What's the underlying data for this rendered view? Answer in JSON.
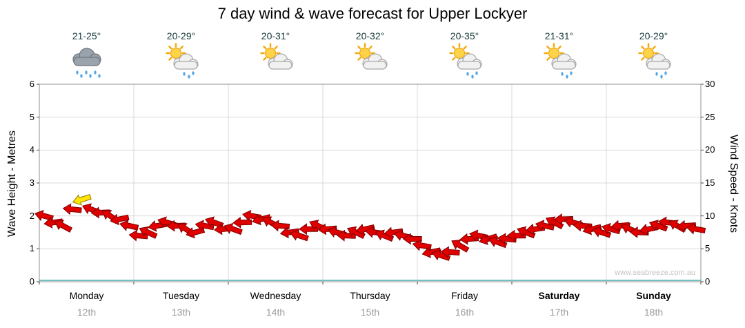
{
  "title": "7 day wind & wave forecast for Upper Lockyer",
  "watermark": "www.seabreeze.com.au",
  "axes": {
    "left_label": "Wave Height - Metres",
    "right_label": "Wind Speed - Knots",
    "left_ticks": [
      0,
      1,
      2,
      3,
      4,
      5,
      6
    ],
    "right_ticks": [
      0,
      5,
      10,
      15,
      20,
      25,
      30
    ]
  },
  "days": [
    {
      "name": "Monday",
      "date": "12th",
      "temp": "21-25°",
      "icon": "rain-cloud",
      "bold": false
    },
    {
      "name": "Tuesday",
      "date": "13th",
      "temp": "20-29°",
      "icon": "sun-cloud-rain",
      "bold": false
    },
    {
      "name": "Wednesday",
      "date": "14th",
      "temp": "20-31°",
      "icon": "sun-cloud",
      "bold": false
    },
    {
      "name": "Thursday",
      "date": "15th",
      "temp": "20-32°",
      "icon": "sun-cloud",
      "bold": false
    },
    {
      "name": "Friday",
      "date": "16th",
      "temp": "20-35°",
      "icon": "sun-cloud-rain",
      "bold": false
    },
    {
      "name": "Saturday",
      "date": "17th",
      "temp": "21-31°",
      "icon": "sun-cloud-rain",
      "bold": true
    },
    {
      "name": "Sunday",
      "date": "18th",
      "temp": "20-29°",
      "icon": "sun-cloud-rain",
      "bold": true
    }
  ],
  "colors": {
    "arrow_red": "#e00000",
    "arrow_red_outline": "#7d0000",
    "arrow_yellow": "#ffe400",
    "arrow_yellow_outline": "#8a7a00",
    "wave_line": "#6fc2c2",
    "grid": "#d9d9d9",
    "plot_border": "#8f8f8f",
    "tick": "#444444",
    "date_text": "#9a9a9a",
    "watermark_text": "#c4c4c4"
  },
  "chart_data": {
    "type": "scatter",
    "subtype": "wind-arrow-series",
    "title": "7 day wind & wave forecast for Upper Lockyer",
    "ylabel_left": "Wave Height - Metres",
    "ylabel_right": "Wind Speed - Knots",
    "ylim_left_metres": [
      0,
      6
    ],
    "ylim_right_knots": [
      0,
      30
    ],
    "grid": "on",
    "legend": "none",
    "x_days": [
      "Monday 12th",
      "Tuesday 13th",
      "Wednesday 14th",
      "Thursday 15th",
      "Friday 16th",
      "Saturday 17th",
      "Sunday 18th"
    ],
    "samples_per_day": 10,
    "wind_speed_knots": [
      10,
      9,
      8.5,
      11,
      12.5,
      11,
      10.5,
      10,
      9.5,
      8.5,
      7,
      7.5,
      8.5,
      9,
      8.5,
      8,
      7.5,
      8.5,
      9,
      8,
      8,
      9,
      10,
      9.5,
      9,
      8.5,
      7.5,
      7,
      8,
      8.5,
      8,
      7.5,
      7,
      7.5,
      8,
      7.5,
      7,
      7.5,
      7,
      6.5,
      5.5,
      4.5,
      4,
      4.5,
      5.5,
      6.5,
      7,
      6.5,
      6,
      6.5,
      7,
      7.5,
      8,
      8.5,
      9,
      9.5,
      9,
      8.5,
      8,
      7.5,
      8,
      8.5,
      8,
      7.5,
      8,
      8.5,
      9,
      8.5,
      8.5,
      8
    ],
    "wind_direction_deg": [
      195,
      172,
      208,
      186,
      163,
      201,
      178,
      214,
      168,
      192,
      185,
      205,
      170,
      196,
      178,
      212,
      165,
      190,
      200,
      175,
      200,
      178,
      190,
      165,
      208,
      185,
      172,
      198,
      180,
      205,
      175,
      195,
      182,
      206,
      168,
      188,
      202,
      172,
      194,
      180,
      190,
      168,
      198,
      184,
      210,
      176,
      192,
      163,
      200,
      186,
      180,
      202,
      172,
      192,
      208,
      178,
      196,
      184,
      166,
      198,
      196,
      174,
      204,
      182,
      168,
      200,
      186,
      210,
      176,
      190
    ],
    "wave_height_metres_flat": 0,
    "arrow_yellow_threshold_knots": 12
  }
}
